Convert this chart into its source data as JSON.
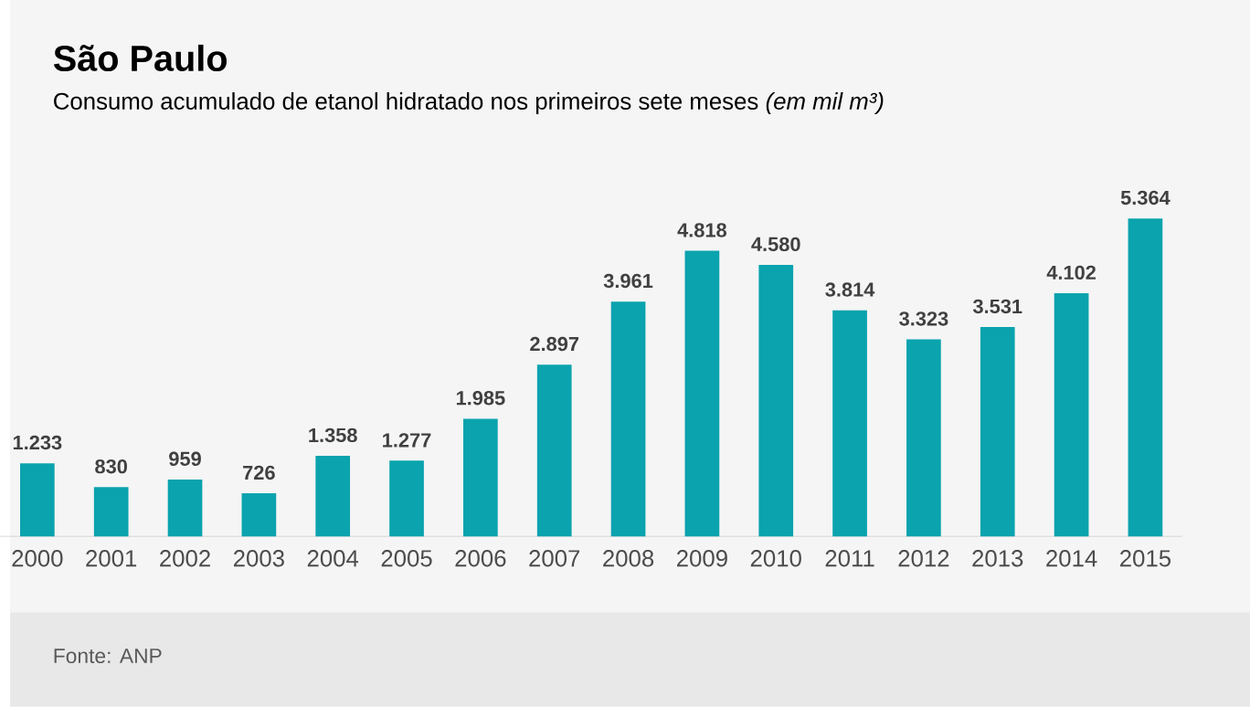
{
  "chart_data": {
    "type": "bar",
    "title": "São Paulo",
    "subtitle": "Consumo acumulado de etanol hidratado nos primeiros sete meses *(em mil m³)*",
    "categories": [
      "2000",
      "2001",
      "2002",
      "2003",
      "2004",
      "2005",
      "2006",
      "2007",
      "2008",
      "2009",
      "2010",
      "2011",
      "2012",
      "2013",
      "2014",
      "2015"
    ],
    "values": [
      1233,
      830,
      959,
      726,
      1358,
      1277,
      1985,
      2897,
      3961,
      4818,
      4580,
      3814,
      3323,
      3531,
      4102,
      5364
    ],
    "value_labels": [
      "1.233",
      "830",
      "959",
      "726",
      "1.358",
      "1.277",
      "1.985",
      "2.897",
      "3.961",
      "4.818",
      "4.580",
      "3.814",
      "3.323",
      "3.531",
      "4.102",
      "5.364"
    ],
    "color": "#0aa3ae",
    "annotations": [
      "Fonte: ANP"
    ]
  }
}
